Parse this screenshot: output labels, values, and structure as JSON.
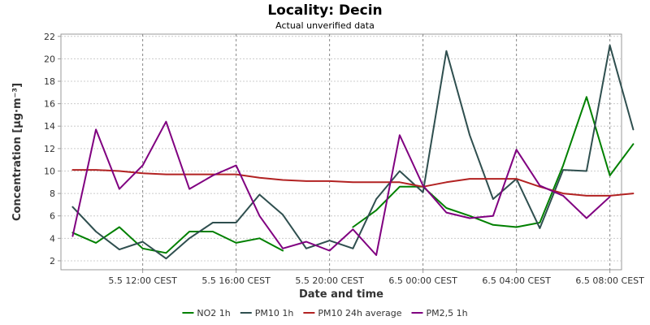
{
  "chart_data": {
    "type": "line",
    "title": "Locality: Decin",
    "subtitle": "Actual unverified data",
    "xlabel": "Date and time",
    "ylabel": "Concentration [µg·m⁻³]",
    "ylim": [
      1.2,
      22.2
    ],
    "y_ticks": [
      2,
      4,
      6,
      8,
      10,
      12,
      14,
      16,
      18,
      20,
      22
    ],
    "x_ticks": [
      {
        "hour": 3,
        "label": "5.5 12:00 CEST"
      },
      {
        "hour": 7,
        "label": "5.5 16:00 CEST"
      },
      {
        "hour": 11,
        "label": "5.5 20:00 CEST"
      },
      {
        "hour": 15,
        "label": "6.5 00:00 CEST"
      },
      {
        "hour": 19,
        "label": "6.5 04:00 CEST"
      },
      {
        "hour": 23,
        "label": "6.5 08:00 CEST"
      }
    ],
    "x_range_hours": [
      -0.5,
      23.5
    ],
    "grid": true,
    "legend_position": "bottom",
    "series": [
      {
        "name": "NO2 1h",
        "color": "#008000",
        "values": [
          4.5,
          3.6,
          5.0,
          3.1,
          2.7,
          4.6,
          4.6,
          3.6,
          4.0,
          2.9,
          null,
          null,
          5.0,
          6.5,
          8.6,
          8.6,
          6.7,
          6.0,
          5.2,
          5.0,
          5.4,
          10.5,
          16.6,
          9.6,
          12.4
        ]
      },
      {
        "name": "PM10 1h",
        "color": "#2f4f4f",
        "values": [
          6.8,
          4.6,
          3.0,
          3.7,
          2.2,
          4.0,
          5.4,
          5.4,
          7.9,
          6.1,
          3.1,
          3.8,
          3.1,
          7.5,
          10.0,
          8.1,
          20.7,
          13.2,
          7.5,
          9.3,
          4.9,
          10.1,
          10.0,
          21.2,
          13.7
        ]
      },
      {
        "name": "PM10 24h average",
        "color": "#b22222",
        "values": [
          10.1,
          10.1,
          10.0,
          9.8,
          9.7,
          9.7,
          9.7,
          9.7,
          9.4,
          9.2,
          9.1,
          9.1,
          9.0,
          9.0,
          9.0,
          8.6,
          9.0,
          9.3,
          9.3,
          9.3,
          8.6,
          8.0,
          7.8,
          7.8,
          8.0
        ]
      },
      {
        "name": "PM2,5 1h",
        "color": "#800080",
        "values": [
          4.2,
          13.7,
          8.4,
          10.5,
          14.4,
          8.4,
          9.6,
          10.5,
          6.0,
          3.1,
          3.7,
          2.9,
          4.8,
          2.5,
          13.2,
          8.7,
          6.3,
          5.8,
          6.0,
          11.9,
          8.7,
          7.8,
          5.8,
          7.7,
          null
        ]
      }
    ]
  }
}
